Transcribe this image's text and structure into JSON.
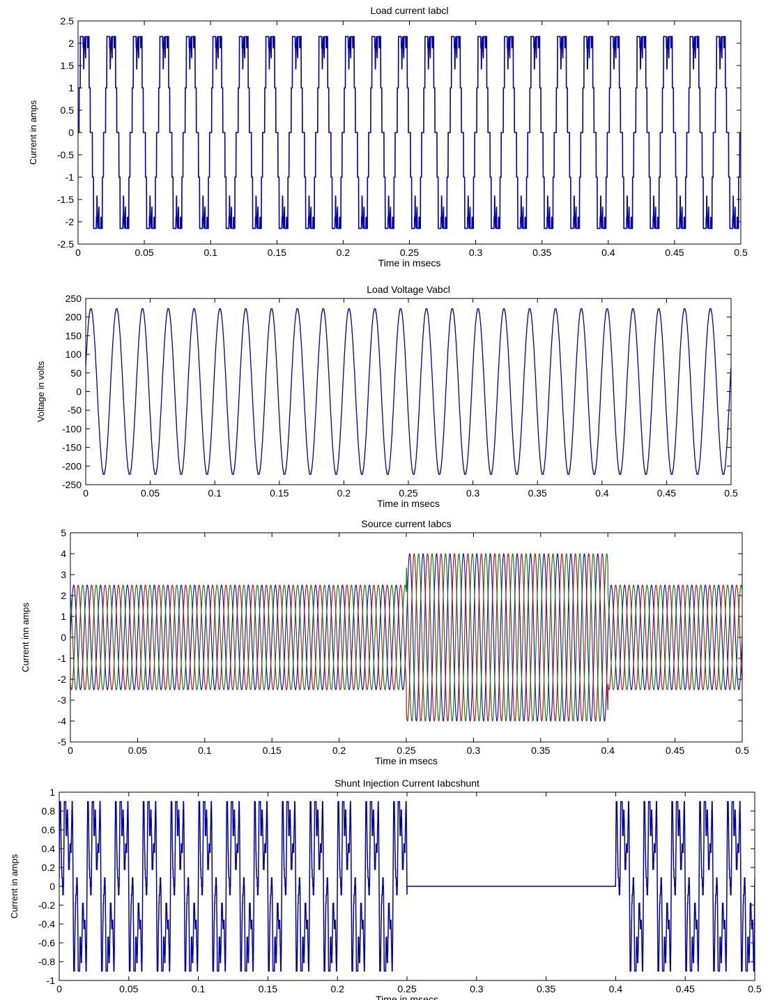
{
  "chart_data": [
    {
      "type": "line",
      "title": "Load current Iabcl",
      "xlabel": "Time in msecs",
      "ylabel": "Current in amps",
      "xlim": [
        0,
        0.5
      ],
      "ylim": [
        -2.5,
        2.5
      ],
      "xticks": [
        "0",
        "0.05",
        "0.1",
        "0.15",
        "0.2",
        "0.25",
        "0.3",
        "0.35",
        "0.4",
        "0.45",
        "0.5"
      ],
      "yticks": [
        "2.5",
        "2",
        "1.5",
        "1",
        "0.5",
        "0",
        "-0.5",
        "-1",
        "-1.5",
        "-2",
        "-2.5"
      ],
      "grid": false,
      "series": [
        {
          "color": "#0000aa",
          "waveform": "six-pulse rectifier current",
          "amplitude": 2.15,
          "frequency_cycles": 25
        }
      ]
    },
    {
      "type": "line",
      "title": "Load Voltage Vabcl",
      "xlabel": "Time in msecs",
      "ylabel": "Voltage in volts",
      "xlim": [
        0,
        0.5
      ],
      "ylim": [
        -250,
        250
      ],
      "xticks": [
        "0",
        "0.05",
        "0.1",
        "0.15",
        "0.2",
        "0.25",
        "0.3",
        "0.35",
        "0.4",
        "0.45",
        "0.5"
      ],
      "yticks": [
        "250",
        "200",
        "150",
        "100",
        "50",
        "0",
        "-50",
        "-100",
        "-150",
        "-200",
        "-250"
      ],
      "grid": false,
      "series": [
        {
          "color": "#0000aa",
          "waveform": "sinusoid",
          "amplitude": 222,
          "frequency_cycles": 25
        }
      ]
    },
    {
      "type": "line",
      "title": "Source current Iabcs",
      "xlabel": "Time in msecs",
      "ylabel": "Current inn amps",
      "xlim": [
        0,
        0.5
      ],
      "ylim": [
        -5,
        5
      ],
      "xticks": [
        "0",
        "0.05",
        "0.1",
        "0.15",
        "0.2",
        "0.25",
        "0.3",
        "0.35",
        "0.4",
        "0.45",
        "0.5"
      ],
      "yticks": [
        "5",
        "4",
        "3",
        "2",
        "1",
        "0",
        "-1",
        "-2",
        "-3",
        "-4",
        "-5"
      ],
      "grid": false,
      "segments": [
        {
          "x_range": [
            0,
            0.25
          ],
          "amplitude": 2.5
        },
        {
          "x_range": [
            0.25,
            0.4
          ],
          "amplitude": 4.0
        },
        {
          "x_range": [
            0.4,
            0.5
          ],
          "amplitude": 2.5
        }
      ],
      "series": [
        {
          "color": "#0000cc",
          "phase_deg": 0,
          "frequency_cycles": 50
        },
        {
          "color": "#cc0000",
          "phase_deg": -120,
          "frequency_cycles": 50
        },
        {
          "color": "#007700",
          "phase_deg": 120,
          "frequency_cycles": 50
        }
      ]
    },
    {
      "type": "line",
      "title": "Shunt Injection Current Iabcshunt",
      "xlabel": "Time in msecs",
      "ylabel": "Current in amps",
      "xlim": [
        0,
        0.5
      ],
      "ylim": [
        -1,
        1
      ],
      "xticks": [
        "0",
        "0.05",
        "0.1",
        "0.15",
        "0.2",
        "0.25",
        "0.3",
        "0.35",
        "0.4",
        "0.45",
        "0.5"
      ],
      "yticks": [
        "1",
        "0.8",
        "0.6",
        "0.4",
        "0.2",
        "0",
        "-0.2",
        "-0.4",
        "-0.6",
        "-0.8",
        "-1"
      ],
      "grid": false,
      "active_ranges": [
        [
          0,
          0.25
        ],
        [
          0.4,
          0.5
        ]
      ],
      "series": [
        {
          "color": "#0000aa",
          "waveform": "harmonic compensation current",
          "amplitude": 0.92,
          "frequency_cycles": 25
        }
      ]
    }
  ]
}
